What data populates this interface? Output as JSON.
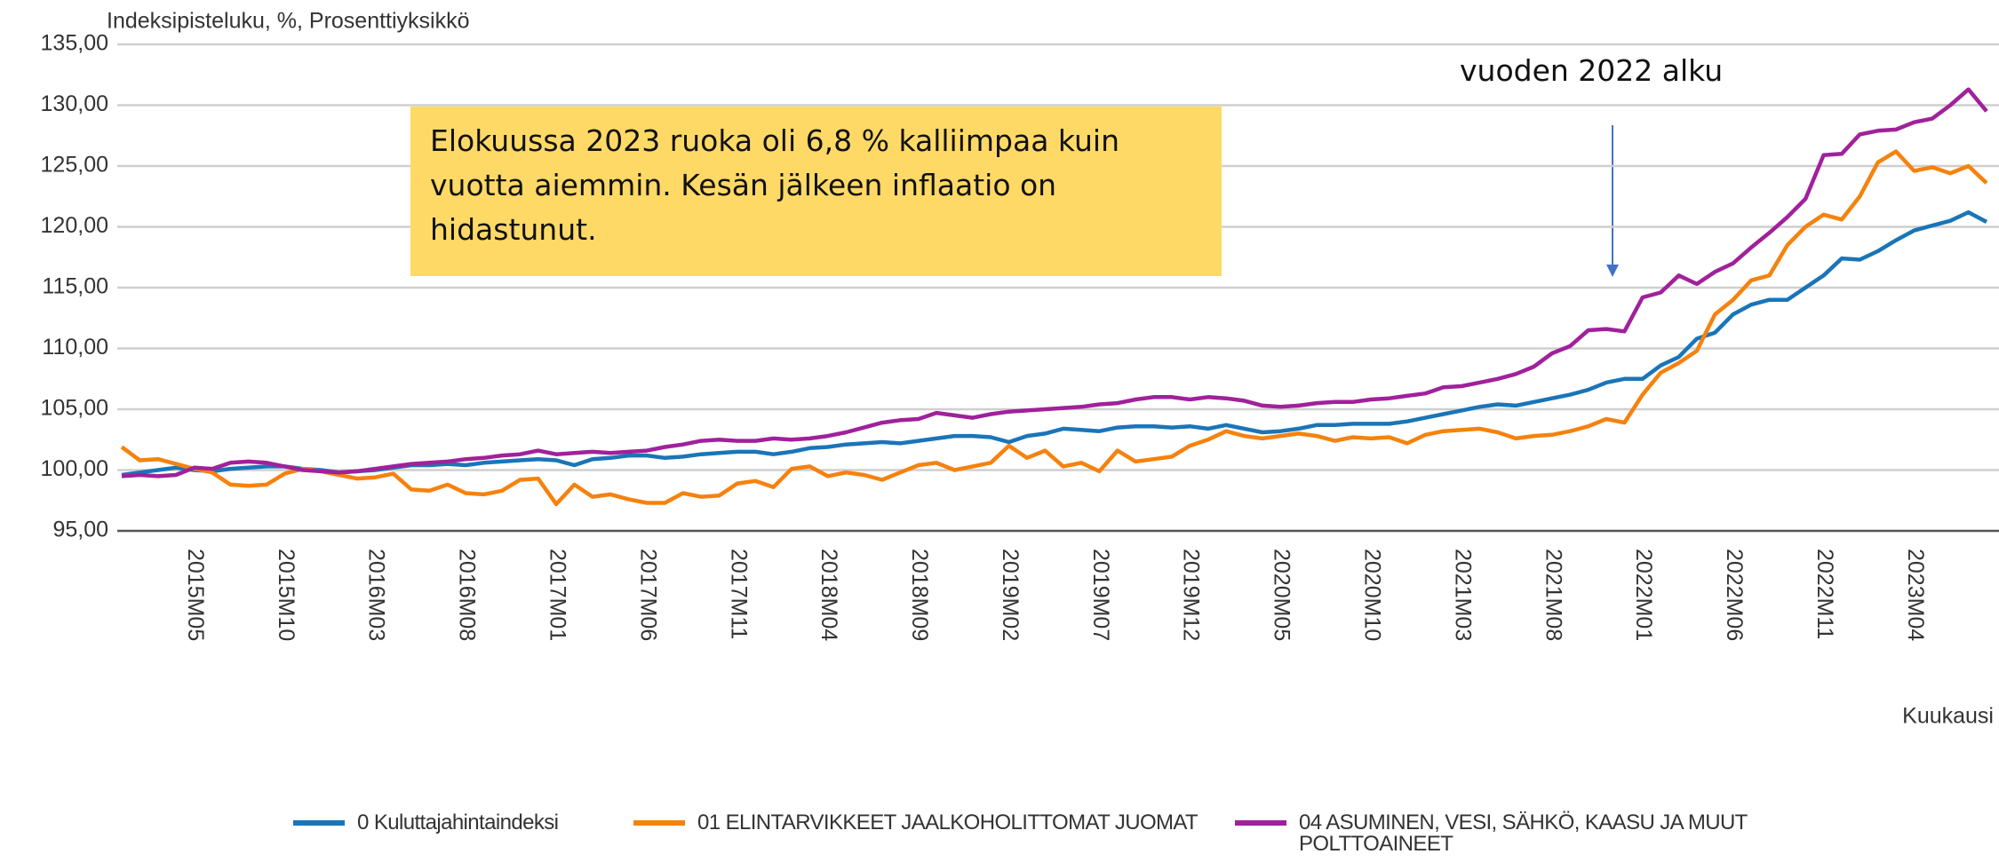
{
  "chart_data": {
    "type": "line",
    "ylabel": "Indeksipisteluku, %, Prosenttiyksikkö",
    "xlabel": "Kuukausi",
    "annotations": [
      {
        "text": "Elokuussa 2023 ruoka oli 6,8 % kalliimpaa kuin vuotta aiemmin. Kesän jälkeen inflaatio on hidastunut."
      },
      {
        "text": "vuoden 2022 alku"
      }
    ],
    "categories": [
      null,
      null,
      null,
      null,
      "2015M05",
      null,
      null,
      null,
      null,
      "2015M10",
      null,
      null,
      null,
      null,
      "2016M03",
      null,
      null,
      null,
      null,
      "2016M08",
      null,
      null,
      null,
      null,
      "2017M01",
      null,
      null,
      null,
      null,
      "2017M06",
      null,
      null,
      null,
      null,
      "2017M11",
      null,
      null,
      null,
      null,
      "2018M04",
      null,
      null,
      null,
      null,
      "2018M09",
      null,
      null,
      null,
      null,
      "2019M02",
      null,
      null,
      null,
      null,
      "2019M07",
      null,
      null,
      null,
      null,
      "2019M12",
      null,
      null,
      null,
      null,
      "2020M05",
      null,
      null,
      null,
      null,
      "2020M10",
      null,
      null,
      null,
      null,
      "2021M03",
      null,
      null,
      null,
      null,
      "2021M08",
      null,
      null,
      null,
      null,
      "2022M01",
      null,
      null,
      null,
      null,
      "2022M06",
      null,
      null,
      null,
      null,
      "2022M11",
      null,
      null,
      null,
      null,
      "2023M04",
      null,
      null,
      null,
      null
    ],
    "series": [
      {
        "name": "0 Kuluttajahintaindeksi",
        "color": "#1a75b8",
        "values": [
          99.6,
          99.8,
          100.0,
          100.2,
          100.0,
          99.9,
          100.1,
          100.2,
          100.3,
          100.3,
          100.1,
          100.0,
          99.8,
          99.9,
          100.0,
          100.2,
          100.4,
          100.4,
          100.5,
          100.4,
          100.6,
          100.7,
          100.8,
          100.9,
          100.8,
          100.4,
          100.9,
          101.0,
          101.2,
          101.2,
          101.0,
          101.1,
          101.3,
          101.4,
          101.5,
          101.5,
          101.3,
          101.5,
          101.8,
          101.9,
          102.1,
          102.2,
          102.3,
          102.2,
          102.4,
          102.6,
          102.8,
          102.8,
          102.7,
          102.3,
          102.8,
          103.0,
          103.4,
          103.3,
          103.2,
          103.5,
          103.6,
          103.6,
          103.5,
          103.6,
          103.4,
          103.7,
          103.4,
          103.1,
          103.2,
          103.4,
          103.7,
          103.7,
          103.8,
          103.8,
          103.8,
          104.0,
          104.3,
          104.6,
          104.9,
          105.2,
          105.4,
          105.3,
          105.6,
          105.9,
          106.2,
          106.6,
          107.2,
          107.5,
          107.5,
          108.6,
          109.3,
          110.8,
          111.3,
          112.8,
          113.6,
          114.0,
          114.0,
          115.0,
          116.0,
          117.4,
          117.3,
          118.0,
          118.9,
          119.7,
          120.1,
          120.5,
          121.2,
          120.4
        ]
      },
      {
        "name": "01 ELINTARVIKKEET JAALKOHOLITTOMAT JUOMAT",
        "color": "#f5820f",
        "values": [
          101.9,
          100.8,
          100.9,
          100.5,
          100.1,
          99.8,
          98.8,
          98.7,
          98.8,
          99.7,
          100.1,
          99.9,
          99.6,
          99.3,
          99.4,
          99.7,
          98.4,
          98.3,
          98.8,
          98.1,
          98.0,
          98.3,
          99.2,
          99.3,
          97.2,
          98.8,
          97.8,
          98.0,
          97.6,
          97.3,
          97.3,
          98.1,
          97.8,
          97.9,
          98.9,
          99.1,
          98.6,
          100.1,
          100.3,
          99.5,
          99.8,
          99.6,
          99.2,
          99.8,
          100.4,
          100.6,
          100.0,
          100.3,
          100.6,
          102.0,
          101.0,
          101.6,
          100.3,
          100.6,
          99.9,
          101.6,
          100.7,
          100.9,
          101.1,
          102.0,
          102.5,
          103.2,
          102.8,
          102.6,
          102.8,
          103.0,
          102.8,
          102.4,
          102.7,
          102.6,
          102.7,
          102.2,
          102.9,
          103.2,
          103.3,
          103.4,
          103.1,
          102.6,
          102.8,
          102.9,
          103.2,
          103.6,
          104.2,
          103.9,
          106.2,
          108.0,
          108.8,
          109.8,
          112.8,
          114.0,
          115.6,
          116.0,
          118.5,
          120.0,
          121.0,
          120.6,
          122.5,
          125.3,
          126.2,
          124.6,
          124.9,
          124.4,
          125.0,
          123.6
        ]
      },
      {
        "name": "04 ASUMINEN, VESI, SÄHKÖ, KAASU JA MUUT POLTTOAINEET",
        "color": "#a0219b",
        "values": [
          99.5,
          99.6,
          99.5,
          99.6,
          100.2,
          100.1,
          100.6,
          100.7,
          100.6,
          100.3,
          100.0,
          99.9,
          99.8,
          99.9,
          100.1,
          100.3,
          100.5,
          100.6,
          100.7,
          100.9,
          101.0,
          101.2,
          101.3,
          101.6,
          101.3,
          101.4,
          101.5,
          101.4,
          101.5,
          101.6,
          101.9,
          102.1,
          102.4,
          102.5,
          102.4,
          102.4,
          102.6,
          102.5,
          102.6,
          102.8,
          103.1,
          103.5,
          103.9,
          104.1,
          104.2,
          104.7,
          104.5,
          104.3,
          104.6,
          104.8,
          104.9,
          105.0,
          105.1,
          105.2,
          105.4,
          105.5,
          105.8,
          106.0,
          106.0,
          105.8,
          106.0,
          105.9,
          105.7,
          105.3,
          105.2,
          105.3,
          105.5,
          105.6,
          105.6,
          105.8,
          105.9,
          106.1,
          106.3,
          106.8,
          106.9,
          107.2,
          107.5,
          107.9,
          108.5,
          109.6,
          110.2,
          111.5,
          111.6,
          111.4,
          114.2,
          114.6,
          116.0,
          115.3,
          116.3,
          117.0,
          118.3,
          119.5,
          120.8,
          122.3,
          125.9,
          126.0,
          127.6,
          127.9,
          128.0,
          128.6,
          128.9,
          130.0,
          131.3,
          129.5
        ]
      }
    ],
    "ylim": [
      95,
      135
    ],
    "yticks": [
      {
        "value": 95,
        "label": "95,00"
      },
      {
        "value": 100,
        "label": "100,00"
      },
      {
        "value": 105,
        "label": "105,00"
      },
      {
        "value": 110,
        "label": "110,00"
      },
      {
        "value": 115,
        "label": "115,00"
      },
      {
        "value": 120,
        "label": "120,00"
      },
      {
        "value": 125,
        "label": "125,00"
      },
      {
        "value": 130,
        "label": "130,00"
      },
      {
        "value": 135,
        "label": "135,00"
      }
    ],
    "grid": true,
    "legend": "bottom"
  }
}
